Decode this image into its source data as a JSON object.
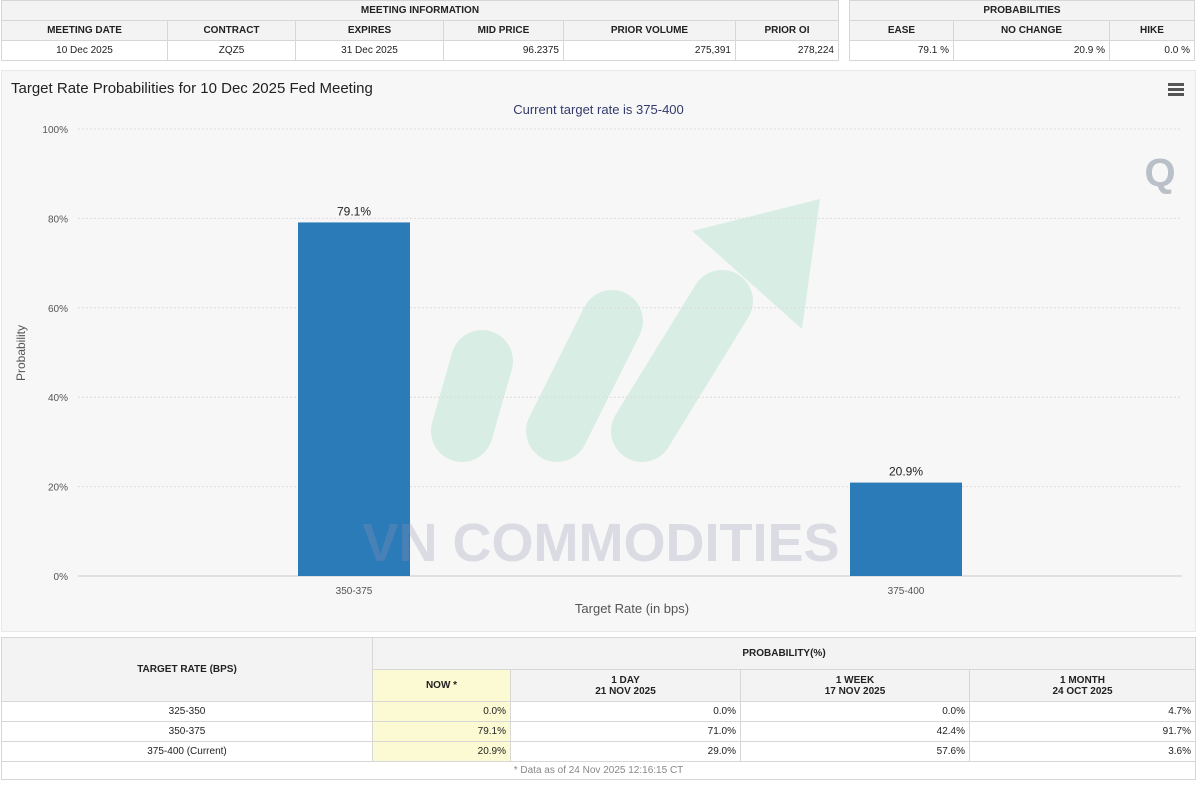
{
  "meeting": {
    "section_title": "MEETING INFORMATION",
    "headers": [
      "MEETING DATE",
      "CONTRACT",
      "EXPIRES",
      "MID PRICE",
      "PRIOR VOLUME",
      "PRIOR OI"
    ],
    "values": [
      "10 Dec 2025",
      "ZQZ5",
      "31 Dec 2025",
      "96.2375",
      "275,391",
      "278,224"
    ]
  },
  "probabilities": {
    "section_title": "PROBABILITIES",
    "headers": [
      "EASE",
      "NO CHANGE",
      "HIKE"
    ],
    "values": [
      "79.1 %",
      "20.9 %",
      "0.0 %"
    ]
  },
  "chart_panel": {
    "title": "Target Rate Probabilities for 10 Dec 2025 Fed Meeting",
    "subtitle": "Current target rate is 375-400",
    "watermark": "VN COMMODITIES",
    "logo_letter": "Q",
    "menu_icon": "hamburger-menu-icon"
  },
  "chart_data": {
    "type": "bar",
    "title": "Target Rate Probabilities for 10 Dec 2025 Fed Meeting",
    "subtitle": "Current target rate is 375-400",
    "categories": [
      "350-375",
      "375-400"
    ],
    "values": [
      79.1,
      20.9
    ],
    "value_labels": [
      "79.1%",
      "20.9%"
    ],
    "xlabel": "Target Rate (in bps)",
    "ylabel": "Probability",
    "ylim": [
      0,
      100
    ],
    "yticks": [
      0,
      20,
      40,
      60,
      80,
      100
    ],
    "ytick_labels": [
      "0%",
      "20%",
      "40%",
      "60%",
      "80%",
      "100%"
    ],
    "grid": true,
    "bar_color": "#2b7bb9"
  },
  "table": {
    "rate_header": "TARGET RATE (BPS)",
    "prob_header": "PROBABILITY(%)",
    "columns": [
      {
        "line1": "NOW *",
        "line2": ""
      },
      {
        "line1": "1 DAY",
        "line2": "21 NOV 2025"
      },
      {
        "line1": "1 WEEK",
        "line2": "17 NOV 2025"
      },
      {
        "line1": "1 MONTH",
        "line2": "24 OCT 2025"
      }
    ],
    "rows": [
      {
        "rate": "325-350",
        "values": [
          "0.0%",
          "0.0%",
          "0.0%",
          "4.7%"
        ]
      },
      {
        "rate": "350-375",
        "values": [
          "79.1%",
          "71.0%",
          "42.4%",
          "91.7%"
        ]
      },
      {
        "rate": "375-400 (Current)",
        "values": [
          "20.9%",
          "29.0%",
          "57.6%",
          "3.6%"
        ]
      }
    ],
    "footnote": "* Data as of 24 Nov 2025 12:16:15 CT"
  }
}
